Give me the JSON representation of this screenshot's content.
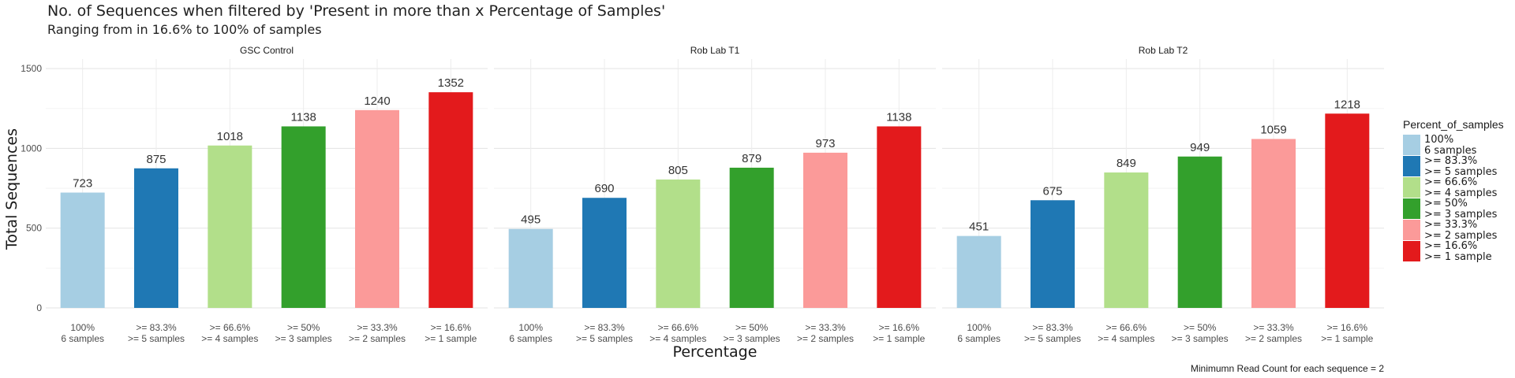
{
  "chart_data": {
    "type": "bar",
    "title": "No. of Sequences when filtered by 'Present in more than x Percentage of Samples'",
    "subtitle": "Ranging from in 16.6% to 100% of samples",
    "xlabel": "Percentage",
    "ylabel": "Total Sequences",
    "caption": "Minimumn Read Count for each sequence = 2",
    "ylim": [
      0,
      1560
    ],
    "yticks": [
      "0",
      "500",
      "1000",
      "1500"
    ],
    "grid": true,
    "legend_position": "right",
    "legend_title": "Percent_of_samples",
    "categories": [
      [
        "100%",
        "6 samples"
      ],
      [
        ">= 83.3%",
        ">= 5 samples"
      ],
      [
        ">= 66.6%",
        ">= 4 samples"
      ],
      [
        ">= 50%",
        ">= 3 samples"
      ],
      [
        ">= 33.3%",
        ">= 2 samples"
      ],
      [
        ">= 16.6%",
        ">= 1 sample"
      ]
    ],
    "colors": [
      "#a6cee3",
      "#1f78b4",
      "#b2df8a",
      "#33a02c",
      "#fb9a99",
      "#e31a1c"
    ],
    "panels": [
      {
        "name": "GSC Control",
        "values": [
          723,
          875,
          1018,
          1138,
          1240,
          1352
        ]
      },
      {
        "name": "Rob Lab T1",
        "values": [
          495,
          690,
          805,
          879,
          973,
          1138
        ]
      },
      {
        "name": "Rob Lab T2",
        "values": [
          451,
          675,
          849,
          949,
          1059,
          1218
        ]
      }
    ]
  }
}
